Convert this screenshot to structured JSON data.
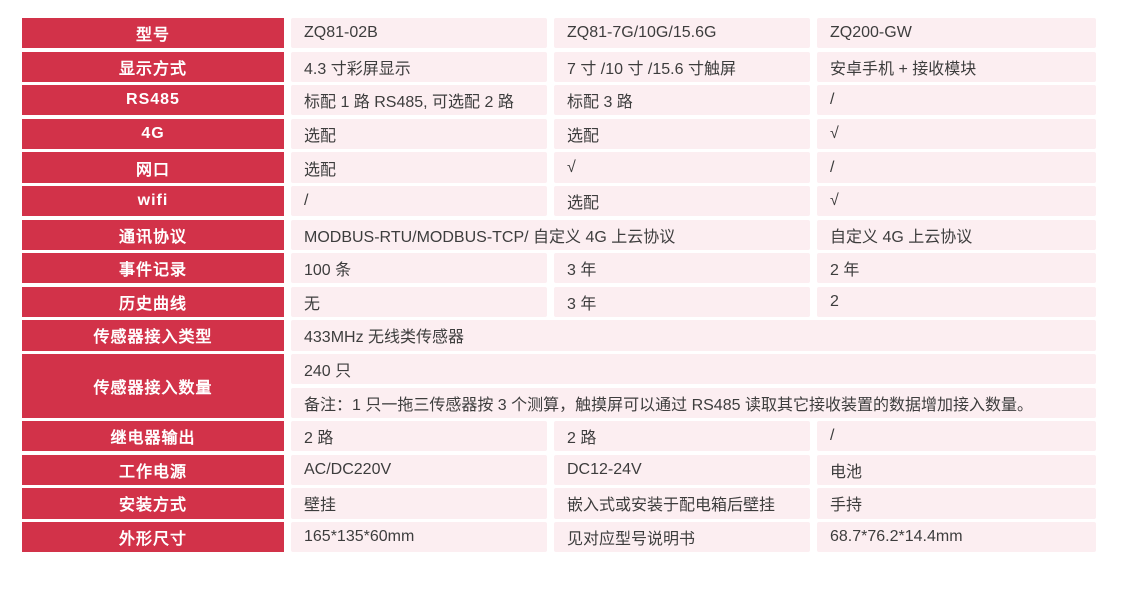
{
  "colors": {
    "label_bg": "#D23249",
    "label_text": "#FFFFFF",
    "cell_bg": "#FCEEF1",
    "cell_text": "#3D3D3D",
    "page_bg": "#FFFFFF"
  },
  "table": {
    "columns": 3,
    "rows": [
      {
        "label": "型号",
        "cell_rows": [
          [
            {
              "text": "ZQ81-02B"
            },
            {
              "text": "ZQ81-7G/10G/15.6G"
            },
            {
              "text": "ZQ200-GW"
            }
          ]
        ]
      },
      {
        "label": "显示方式",
        "cell_rows": [
          [
            {
              "text": "4.3 寸彩屏显示"
            },
            {
              "text": "7 寸 /10 寸 /15.6 寸触屏"
            },
            {
              "text": "安卓手机 + 接收模块"
            }
          ]
        ]
      },
      {
        "label": "RS485",
        "cell_rows": [
          [
            {
              "text": "标配 1 路 RS485, 可选配 2 路"
            },
            {
              "text": "标配 3 路"
            },
            {
              "text": "/"
            }
          ]
        ]
      },
      {
        "label": "4G",
        "cell_rows": [
          [
            {
              "text": "选配"
            },
            {
              "text": "选配"
            },
            {
              "text": "√"
            }
          ]
        ]
      },
      {
        "label": "网口",
        "cell_rows": [
          [
            {
              "text": "选配"
            },
            {
              "text": "√"
            },
            {
              "text": "/"
            }
          ]
        ]
      },
      {
        "label": "wifi",
        "cell_rows": [
          [
            {
              "text": "/"
            },
            {
              "text": "选配"
            },
            {
              "text": "√"
            }
          ]
        ]
      },
      {
        "label": "通讯协议",
        "cell_rows": [
          [
            {
              "text": "MODBUS-RTU/MODBUS-TCP/ 自定义 4G 上云协议",
              "span": 2
            },
            {
              "text": "自定义 4G 上云协议"
            }
          ]
        ]
      },
      {
        "label": "事件记录",
        "cell_rows": [
          [
            {
              "text": "100 条"
            },
            {
              "text": "3 年"
            },
            {
              "text": "2 年"
            }
          ]
        ]
      },
      {
        "label": "历史曲线",
        "cell_rows": [
          [
            {
              "text": "无"
            },
            {
              "text": "3 年"
            },
            {
              "text": "2"
            }
          ]
        ]
      },
      {
        "label": "传感器接入类型",
        "cell_rows": [
          [
            {
              "text": "433MHz 无线类传感器",
              "span": 3
            }
          ]
        ]
      },
      {
        "label": "传感器接入数量",
        "cell_rows": [
          [
            {
              "text": "240 只",
              "span": 3
            }
          ],
          [
            {
              "text": "备注：1 只一拖三传感器按 3 个测算，触摸屏可以通过 RS485 读取其它接收装置的数据增加接入数量。",
              "span": 3
            }
          ]
        ]
      },
      {
        "label": "继电器输出",
        "cell_rows": [
          [
            {
              "text": "2 路"
            },
            {
              "text": "2 路"
            },
            {
              "text": "/"
            }
          ]
        ]
      },
      {
        "label": "工作电源",
        "cell_rows": [
          [
            {
              "text": "AC/DC220V"
            },
            {
              "text": "DC12-24V"
            },
            {
              "text": "电池"
            }
          ]
        ]
      },
      {
        "label": "安装方式",
        "cell_rows": [
          [
            {
              "text": "壁挂"
            },
            {
              "text": "嵌入式或安装于配电箱后壁挂"
            },
            {
              "text": "手持"
            }
          ]
        ]
      },
      {
        "label": "外形尺寸",
        "cell_rows": [
          [
            {
              "text": "165*135*60mm"
            },
            {
              "text": "见对应型号说明书"
            },
            {
              "text": "68.7*76.2*14.4mm"
            }
          ]
        ]
      }
    ]
  }
}
